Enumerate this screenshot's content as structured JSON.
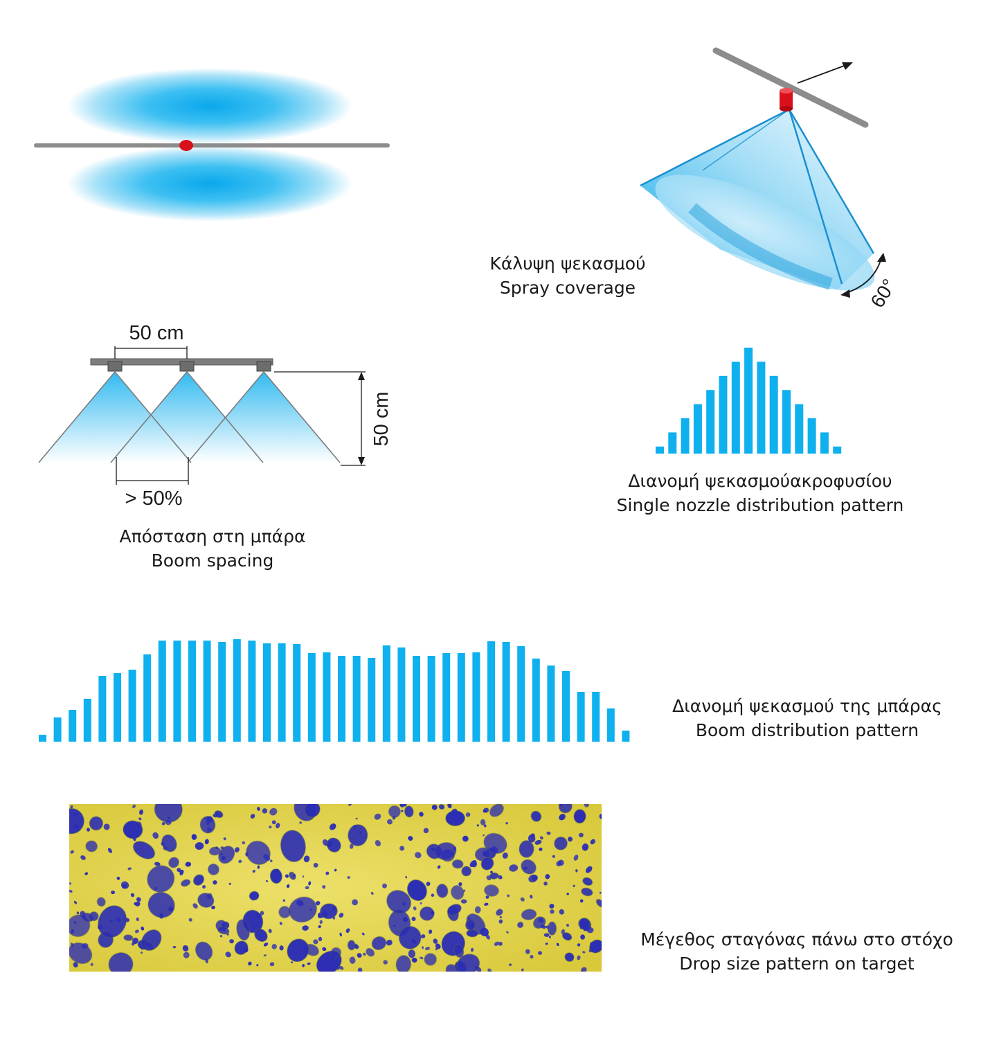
{
  "spray_coverage": {
    "caption_el": "Κάλυψη ψεκασμού",
    "caption_en": "Spray coverage",
    "angle_label": "60°"
  },
  "boom_spacing": {
    "caption_el": "Απόσταση στη μπάρα",
    "caption_en": "Boom spacing",
    "spacing_label": "50 cm",
    "height_label": "50 cm",
    "overlap_label": "> 50%"
  },
  "single_nozzle": {
    "caption_el": "Διανομή ψεκασμούακροφυσίου",
    "caption_en": "Single nozzle distribution pattern",
    "values": [
      1,
      3,
      5,
      7,
      9,
      11,
      13,
      15,
      13,
      11,
      9,
      7,
      5,
      3,
      1
    ]
  },
  "boom_pattern": {
    "caption_el": "Διανομή ψεκασμού της μπάρας",
    "caption_en": "Boom distribution pattern",
    "values": [
      10,
      35,
      46,
      62,
      95,
      99,
      104,
      126,
      146,
      146,
      146,
      146,
      144,
      148,
      146,
      142,
      142,
      141,
      128,
      129,
      124,
      124,
      121,
      139,
      136,
      124,
      124,
      128,
      128,
      129,
      145,
      144,
      138,
      120,
      110,
      102,
      72,
      72,
      48,
      16
    ]
  },
  "drop_size": {
    "caption_el": "Μέγεθος σταγόνας πάνω στο στόχο",
    "caption_en": "Drop size pattern on target"
  },
  "colors": {
    "spray_blue": "#0fb0ee",
    "boom_grey": "#8c8c8c",
    "nozzle_red": "#d9101c",
    "target_yellow": "#e3d54a",
    "droplet_blue": "#2b2db5"
  }
}
